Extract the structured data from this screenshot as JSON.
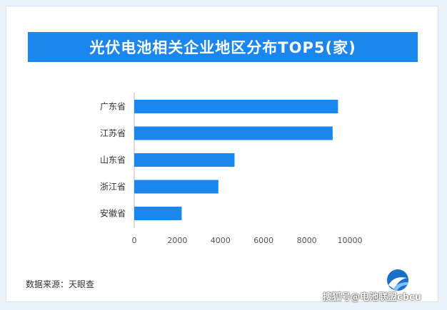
{
  "colors": {
    "accent": "#1a86ee",
    "bar": "#1a86ee"
  },
  "source_text": "数据来源：天眼查",
  "watermark_text": "搜狐号@电池联盟cbcu",
  "logo_icon": "wave-logo-icon",
  "chart_data": {
    "type": "bar",
    "orientation": "horizontal",
    "title": "光伏电池相关企业地区分布TOP5(家)",
    "categories": [
      "广东省",
      "江苏省",
      "山东省",
      "浙江省",
      "安徽省"
    ],
    "values": [
      9450,
      9200,
      4650,
      3900,
      2200
    ],
    "xlim": [
      0,
      10000
    ],
    "xticks": [
      0,
      2000,
      4000,
      6000,
      8000,
      10000
    ],
    "xlabel": "",
    "ylabel": "",
    "grid": false,
    "legend": "none"
  }
}
